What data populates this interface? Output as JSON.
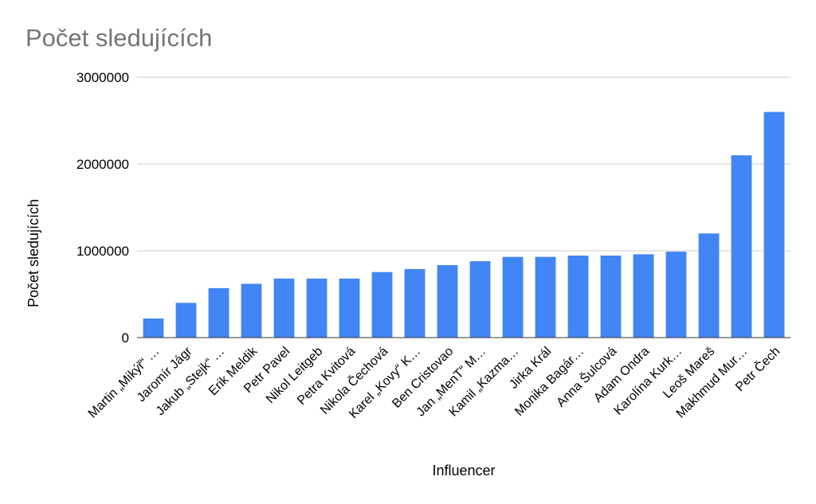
{
  "chart_data": {
    "type": "bar",
    "title": "Počet sledujících",
    "xlabel": "Influencer",
    "ylabel": "Počet sledujících",
    "ylim": [
      0,
      3000000
    ],
    "yticks": [
      "0",
      "1000000",
      "2000000",
      "3000000"
    ],
    "ytick_values": [
      0,
      1000000,
      2000000,
      3000000
    ],
    "grid": true,
    "legend": "none",
    "bar_color": "#4285f4",
    "categories": [
      "Martin „Mikýř“ …",
      "Jaromír Jágr",
      "Jakub „Stejk“ …",
      "Erik Meldik",
      "Petr Pavel",
      "Nikol Leitgeb",
      "Petra Kvitová",
      "Nikola Čechová",
      "Karel „Kovy“ K…",
      "Ben Cristovao",
      "Jan „MenT“ M…",
      "Kamil „Kazma…",
      "Jirka Král",
      "Monika Bagár…",
      "Anna Šulcová",
      "Adam Ondra",
      "Karolína Kurk…",
      "Leoš Mareš",
      "Makhmud Mur…",
      "Petr Čech"
    ],
    "values": [
      220000,
      400000,
      570000,
      620000,
      680000,
      680000,
      680000,
      755000,
      790000,
      835000,
      880000,
      930000,
      930000,
      945000,
      945000,
      960000,
      990000,
      1200000,
      2100000,
      2600000
    ]
  }
}
